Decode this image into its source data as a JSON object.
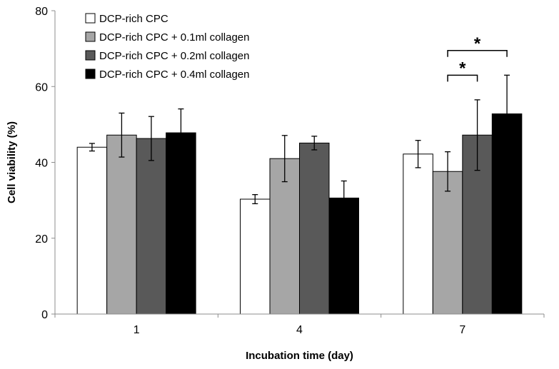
{
  "chart_data": {
    "type": "bar",
    "title": "",
    "xlabel": "Incubation time (day)",
    "ylabel": "Cell viability (%)",
    "ylim": [
      0,
      80
    ],
    "yticks": [
      0,
      20,
      40,
      60,
      80
    ],
    "categories": [
      "1",
      "4",
      "7"
    ],
    "legend_position": "top-left",
    "grid": false,
    "series": [
      {
        "name": "DCP-rich CPC",
        "color": "#ffffff",
        "values": [
          44.0,
          30.3,
          42.2
        ],
        "errors": [
          1.0,
          1.2,
          3.6
        ]
      },
      {
        "name": "DCP-rich CPC + 0.1ml collagen",
        "color": "#a6a6a6",
        "values": [
          47.2,
          41.0,
          37.6
        ],
        "errors": [
          5.8,
          6.1,
          5.2
        ]
      },
      {
        "name": "DCP-rich CPC + 0.2ml collagen",
        "color": "#595959",
        "values": [
          46.3,
          45.1,
          47.2
        ],
        "errors": [
          5.8,
          1.8,
          9.3
        ]
      },
      {
        "name": "DCP-rich CPC + 0.4ml collagen",
        "color": "#000000",
        "values": [
          47.8,
          30.6,
          52.8
        ],
        "errors": [
          6.3,
          4.5,
          10.2
        ]
      }
    ],
    "annotations": [
      {
        "label": "*",
        "category_index": 2,
        "from_series": 1,
        "to_series": 3,
        "y": 69.5
      },
      {
        "label": "*",
        "category_index": 2,
        "from_series": 1,
        "to_series": 2,
        "y": 63.0
      }
    ]
  }
}
